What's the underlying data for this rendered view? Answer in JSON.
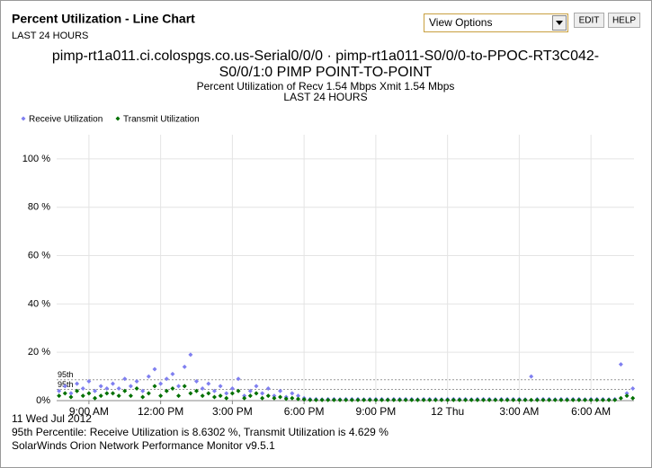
{
  "header": {
    "title": "Percent Utilization - Line Chart",
    "subtitle": "LAST 24 HOURS",
    "select": "View Options",
    "buttons": [
      "EDIT",
      "HELP"
    ]
  },
  "chart_data": {
    "type": "scatter",
    "title_lines": [
      "pimp-rt1a011.ci.colospgs.co.us-Serial0/0/0 · pimp-rt1a011-S0/0/0-to-PPOC-RT3C042-",
      "S0/0/1:0 PIMP POINT-TO-POINT"
    ],
    "subtitle": "Percent Utilization of  Recv 1.54 Mbps  Xmit 1.54 Mbps",
    "period": "LAST 24 HOURS",
    "x": [
      7.75,
      8,
      8.25,
      8.5,
      8.75,
      9,
      9.25,
      9.5,
      9.75,
      10,
      10.25,
      10.5,
      10.75,
      11,
      11.25,
      11.5,
      11.75,
      12,
      12.25,
      12.5,
      12.75,
      13,
      13.25,
      13.5,
      13.75,
      14,
      14.25,
      14.5,
      14.75,
      15,
      15.25,
      15.5,
      15.75,
      16,
      16.25,
      16.5,
      16.75,
      17,
      17.25,
      17.5,
      17.75,
      18,
      18.25,
      18.5,
      18.75,
      19,
      19.25,
      19.5,
      19.75,
      20,
      20.25,
      20.5,
      20.75,
      21,
      21.25,
      21.5,
      21.75,
      22,
      22.25,
      22.5,
      22.75,
      23,
      23.25,
      23.5,
      23.75,
      24,
      24.25,
      24.5,
      24.75,
      25,
      25.25,
      25.5,
      25.75,
      26,
      26.25,
      26.5,
      26.75,
      27,
      27.25,
      27.5,
      27.75,
      28,
      28.25,
      28.5,
      28.75,
      29,
      29.25,
      29.5,
      29.75,
      30,
      30.25,
      30.5,
      30.75,
      31,
      31.25,
      31.5,
      31.75
    ],
    "series": [
      {
        "name": "Receive Utilization",
        "color": "#7f7ff0",
        "values": [
          4,
          6,
          3,
          7,
          5,
          8,
          4,
          6,
          5,
          7,
          5,
          9,
          6,
          8,
          4,
          10,
          13,
          7,
          9,
          11,
          6,
          14,
          19,
          8,
          5,
          7,
          4,
          6,
          3,
          5,
          9,
          2,
          4,
          6,
          3,
          5,
          2,
          4,
          1.5,
          3,
          2,
          1,
          0.6,
          0.6,
          0.5,
          0.6,
          0.6,
          0.5,
          0.6,
          0.6,
          0.6,
          0.5,
          0.6,
          0.6,
          0.6,
          0.5,
          0.6,
          0.6,
          0.6,
          0.6,
          0.5,
          0.6,
          0.6,
          0.6,
          0.5,
          0.6,
          0.6,
          0.6,
          0.6,
          0.5,
          0.6,
          0.6,
          0.6,
          0.5,
          0.6,
          0.6,
          0.6,
          0.6,
          0.5,
          10,
          0.6,
          0.6,
          0.6,
          0.5,
          0.6,
          0.6,
          0.6,
          0.6,
          0.5,
          0.6,
          0.6,
          0.6,
          0.5,
          0.6,
          15,
          3,
          5
        ]
      },
      {
        "name": "Transmit Utilization",
        "color": "#007000",
        "values": [
          2,
          3,
          1.5,
          4,
          2,
          3,
          1,
          2,
          3,
          3,
          2,
          4,
          2,
          5,
          1.5,
          3,
          6,
          2,
          4,
          5,
          2,
          6,
          3,
          4,
          2,
          3,
          1.5,
          2,
          1,
          3,
          4,
          1,
          2,
          3,
          1,
          2,
          1,
          1.5,
          0.8,
          1,
          0.7,
          0.5,
          0.3,
          0.3,
          0.3,
          0.3,
          0.3,
          0.3,
          0.3,
          0.3,
          0.3,
          0.3,
          0.3,
          0.3,
          0.3,
          0.3,
          0.3,
          0.3,
          0.3,
          0.3,
          0.3,
          0.3,
          0.3,
          0.3,
          0.3,
          0.3,
          0.3,
          0.3,
          0.3,
          0.3,
          0.3,
          0.3,
          0.3,
          0.3,
          0.3,
          0.3,
          0.3,
          0.3,
          0.3,
          0.3,
          0.3,
          0.3,
          0.3,
          0.3,
          0.3,
          0.3,
          0.3,
          0.3,
          0.3,
          0.3,
          0.3,
          0.3,
          0.3,
          0.3,
          1,
          2,
          1
        ]
      }
    ],
    "xlim": [
      7.65,
      31.8
    ],
    "xticks": [
      {
        "value": 9,
        "label": "9:00 AM"
      },
      {
        "value": 12,
        "label": "12:00 PM"
      },
      {
        "value": 15,
        "label": "3:00 PM"
      },
      {
        "value": 18,
        "label": "6:00 PM"
      },
      {
        "value": 21,
        "label": "9:00 PM"
      },
      {
        "value": 24,
        "label": "12 Thu"
      },
      {
        "value": 27,
        "label": "3:00 AM"
      },
      {
        "value": 30,
        "label": "6:00 AM"
      }
    ],
    "ylim": [
      0,
      110
    ],
    "yticks": [
      {
        "value": 0,
        "label": "0%"
      },
      {
        "value": 20,
        "label": "20 %"
      },
      {
        "value": 40,
        "label": "40 %"
      },
      {
        "value": 60,
        "label": "60 %"
      },
      {
        "value": 80,
        "label": "80 %"
      },
      {
        "value": 100,
        "label": "100 %"
      }
    ],
    "grid": true,
    "percentiles": [
      {
        "label": "95th",
        "value": 8.6302
      },
      {
        "label": "95th",
        "value": 4.629
      }
    ],
    "date_label": "11 Wed Jul 2012",
    "footer": [
      "95th Percentile: Receive Utilization is 8.6302 %, Transmit Utilization is 4.629 %",
      "SolarWinds Orion Network Performance Monitor v9.5.1"
    ]
  }
}
